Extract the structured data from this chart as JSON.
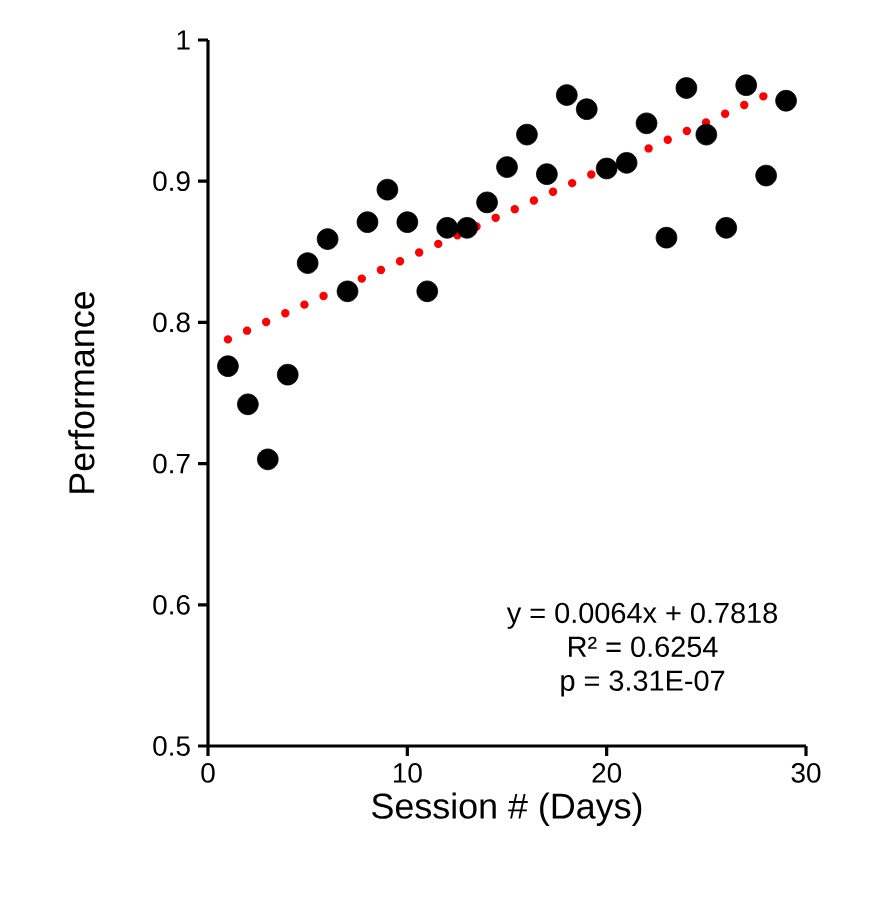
{
  "chart_data": {
    "type": "scatter",
    "xlabel": "Session # (Days)",
    "ylabel": "Performance",
    "xlim": [
      0,
      30
    ],
    "xticks": [
      0,
      10,
      20,
      30
    ],
    "ylim": [
      0.5,
      1
    ],
    "yticks": [
      0.5,
      0.6,
      0.7,
      0.8,
      0.9,
      1
    ],
    "grid": false,
    "series": [
      {
        "marker": "circle",
        "color": "#000000",
        "x": [
          1,
          2,
          3,
          4,
          5,
          6,
          7,
          8,
          9,
          10,
          11,
          12,
          13,
          14,
          15,
          16,
          17,
          18,
          19,
          20,
          21,
          22,
          23,
          24,
          25,
          26,
          27,
          28,
          29
        ],
        "values": [
          0.769,
          0.742,
          0.703,
          0.763,
          0.842,
          0.859,
          0.822,
          0.871,
          0.894,
          0.871,
          0.822,
          0.867,
          0.867,
          0.885,
          0.91,
          0.933,
          0.905,
          0.961,
          0.951,
          0.909,
          0.913,
          0.941,
          0.86,
          0.966,
          0.933,
          0.867,
          0.968,
          0.904,
          0.957
        ]
      },
      {
        "type": "line",
        "color": "#ff0000",
        "line_style": "dotted",
        "x": [
          1,
          28
        ],
        "values": [
          0.788,
          0.961
        ]
      }
    ],
    "annotations": [
      "y = 0.0064x + 0.7818",
      "R² = 0.6254",
      "p = 3.31E-07"
    ]
  }
}
